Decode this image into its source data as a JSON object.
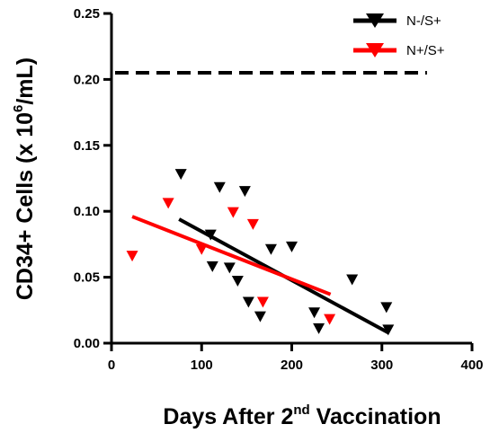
{
  "chart_data": {
    "type": "scatter",
    "xlabel": "Days After 2",
    "xlabel_sup": "nd",
    "xlabel_tail": " Vaccination",
    "ylabel": "CD34+ Cells (x 10",
    "ylabel_sup": "6",
    "ylabel_tail": "/mL)",
    "xlim": [
      0,
      400
    ],
    "ylim": [
      0,
      0.25
    ],
    "xticks": [
      0,
      100,
      200,
      300,
      400
    ],
    "yticks": [
      0.0,
      0.05,
      0.1,
      0.15,
      0.2,
      0.25
    ],
    "ytick_labels": [
      "0.00",
      "0.05",
      "0.10",
      "0.15",
      "0.20",
      "0.25"
    ],
    "grid": false,
    "legend_position": "top-right",
    "reference_line": {
      "y": 0.205,
      "x_range": [
        0,
        350
      ],
      "style": "dashed",
      "color": "#000000"
    },
    "series": [
      {
        "name": "N-/S+",
        "color": "#000000",
        "marker": "triangle-down",
        "points": [
          [
            77,
            0.128
          ],
          [
            110,
            0.082
          ],
          [
            112,
            0.058
          ],
          [
            120,
            0.118
          ],
          [
            131,
            0.057
          ],
          [
            140,
            0.047
          ],
          [
            148,
            0.115
          ],
          [
            152,
            0.031
          ],
          [
            165,
            0.02
          ],
          [
            177,
            0.071
          ],
          [
            200,
            0.073
          ],
          [
            225,
            0.023
          ],
          [
            230,
            0.011
          ],
          [
            267,
            0.048
          ],
          [
            305,
            0.027
          ],
          [
            307,
            0.01
          ]
        ],
        "trend": [
          [
            75,
            0.094
          ],
          [
            307,
            0.008
          ]
        ]
      },
      {
        "name": "N+/S+",
        "color": "#ff0000",
        "marker": "triangle-down",
        "points": [
          [
            23,
            0.066
          ],
          [
            63,
            0.106
          ],
          [
            100,
            0.071
          ],
          [
            135,
            0.099
          ],
          [
            157,
            0.09
          ],
          [
            168,
            0.031
          ],
          [
            242,
            0.018
          ]
        ],
        "trend": [
          [
            23,
            0.096
          ],
          [
            243,
            0.037
          ]
        ]
      }
    ]
  }
}
